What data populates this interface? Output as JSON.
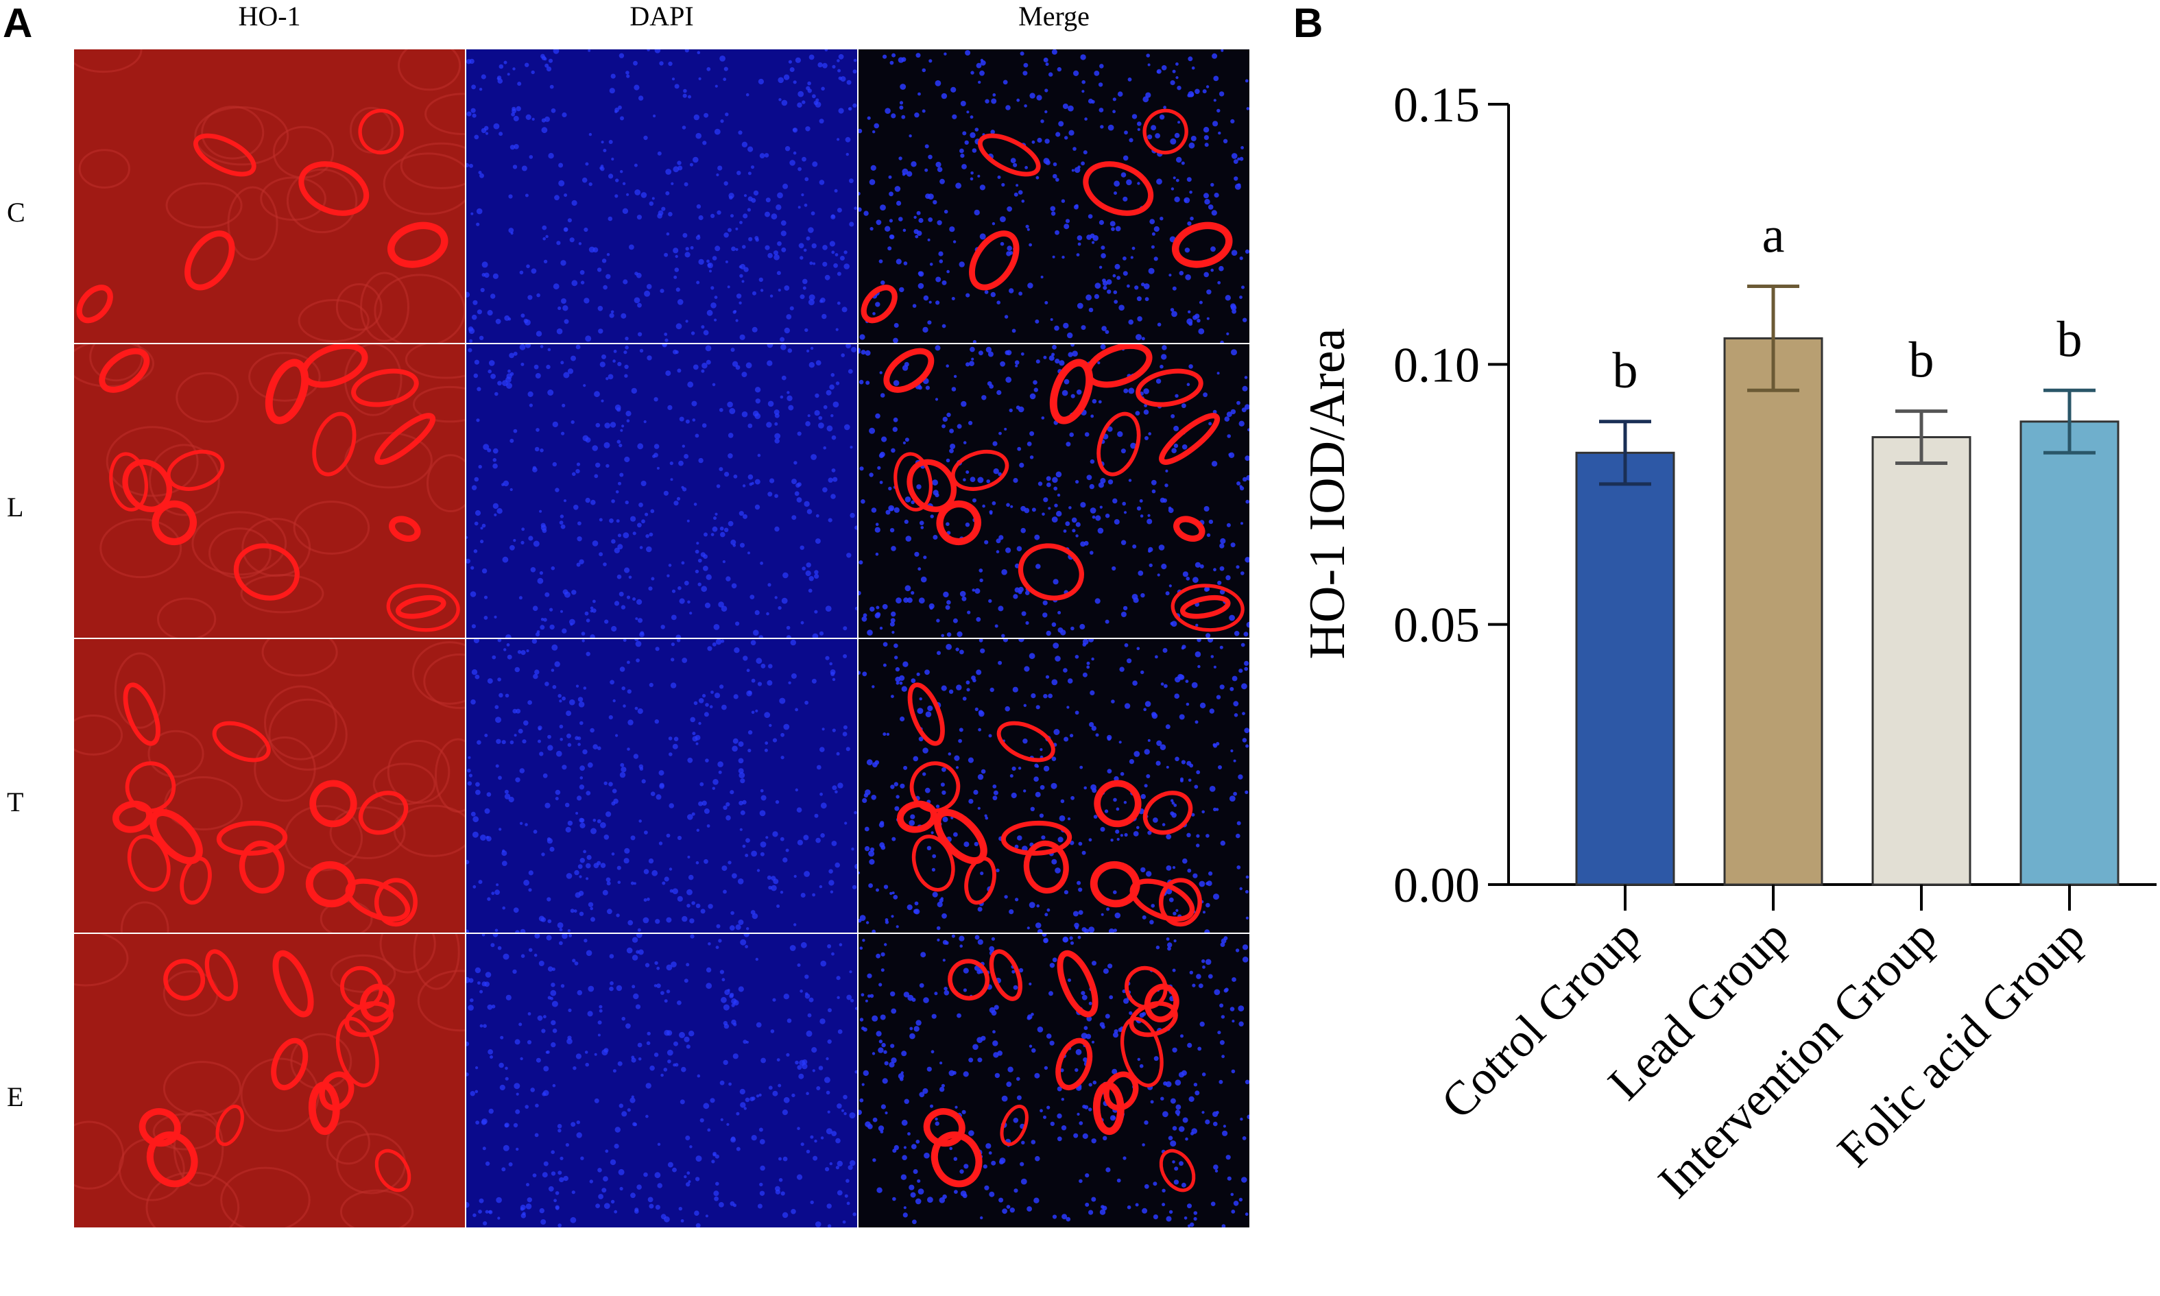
{
  "panel_a": {
    "letter": "A",
    "columns": [
      "HO-1",
      "DAPI",
      "Merge"
    ],
    "rows": [
      "C",
      "L",
      "T",
      "E"
    ]
  },
  "panel_b": {
    "letter": "B"
  },
  "colors": {
    "ho1_bg": "#a01a14",
    "ho1_ring": "#ff1a1a",
    "dapi_bg": "#0a0a8c",
    "dapi_dot": "#2a3aff",
    "merge_bg": "#05050f"
  },
  "chart_data": {
    "type": "bar",
    "categories": [
      "Cotrol Group",
      "Lead Group",
      "Intervention Group",
      "Folic acid Group"
    ],
    "values": [
      0.083,
      0.105,
      0.086,
      0.089
    ],
    "errors": [
      0.006,
      0.01,
      0.005,
      0.006
    ],
    "significance": [
      "b",
      "a",
      "b",
      "b"
    ],
    "bar_colors": [
      "#2d58a6",
      "#b89f72",
      "#e2dfd4",
      "#6fafcc"
    ],
    "error_colors": [
      "#1a2f55",
      "#6b5a35",
      "#555555",
      "#2a5668"
    ],
    "ylabel": "HO-1 IOD/Area",
    "xlabel": "",
    "ylim": [
      0,
      0.15
    ],
    "yticks": [
      "0.00",
      "0.05",
      "0.10",
      "0.15"
    ],
    "grid": false,
    "legend": "none"
  }
}
